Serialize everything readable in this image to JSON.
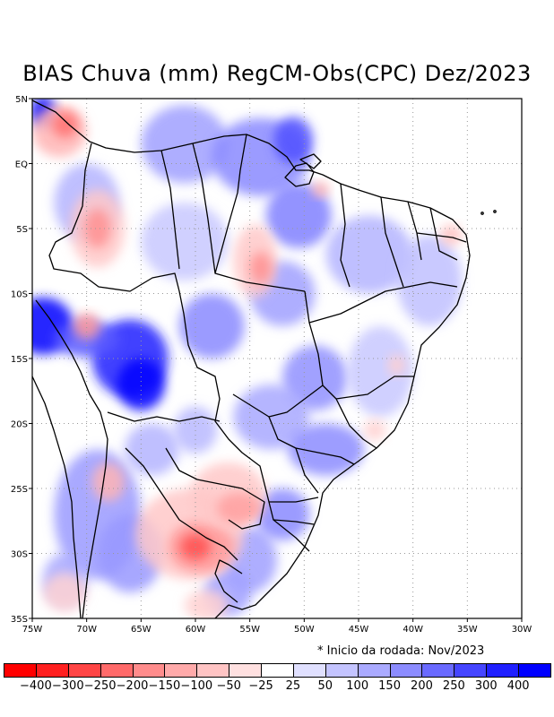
{
  "title": "BIAS Chuva (mm) RegCM-Obs(CPC) Dez/2023",
  "note": "* Inicio da rodada: Nov/2023",
  "map": {
    "lon_range": [
      -75,
      -30
    ],
    "lat_range": [
      -35,
      5
    ],
    "x_ticks": [
      "75W",
      "70W",
      "65W",
      "60W",
      "55W",
      "50W",
      "45W",
      "40W",
      "35W",
      "30W"
    ],
    "y_ticks": [
      "5N",
      "EQ",
      "5S",
      "10S",
      "15S",
      "20S",
      "25S",
      "30S",
      "35S"
    ],
    "blobs": [
      {
        "lon": -74.0,
        "lat": -12.5,
        "rx": 2.8,
        "ry": 2.2,
        "color": "#0000ff"
      },
      {
        "lon": -66.0,
        "lat": -15.0,
        "rx": 3.5,
        "ry": 3.0,
        "color": "#1e1eff"
      },
      {
        "lon": -65.0,
        "lat": -17.0,
        "rx": 2.2,
        "ry": 2.0,
        "color": "#0000ff"
      },
      {
        "lon": -70.0,
        "lat": -13.5,
        "rx": 3.0,
        "ry": 1.4,
        "color": "#5a5aff"
      },
      {
        "lon": -74.0,
        "lat": 4.0,
        "rx": 1.2,
        "ry": 1.2,
        "color": "#0000ff"
      },
      {
        "lon": -61.0,
        "lat": 1.5,
        "rx": 4.0,
        "ry": 3.0,
        "color": "#a0a0ff"
      },
      {
        "lon": -54.0,
        "lat": 0.5,
        "rx": 4.5,
        "ry": 3.0,
        "color": "#8a8aff"
      },
      {
        "lon": -51.0,
        "lat": 1.8,
        "rx": 1.8,
        "ry": 1.8,
        "color": "#5050ff"
      },
      {
        "lon": -50.5,
        "lat": -4.0,
        "rx": 3.0,
        "ry": 2.5,
        "color": "#8080ff"
      },
      {
        "lon": -58.5,
        "lat": -12.5,
        "rx": 3.0,
        "ry": 2.5,
        "color": "#8a8aff"
      },
      {
        "lon": -52.0,
        "lat": -10.0,
        "rx": 3.0,
        "ry": 2.5,
        "color": "#a0a0ff"
      },
      {
        "lon": -49.0,
        "lat": -16.5,
        "rx": 3.0,
        "ry": 2.5,
        "color": "#9090ff"
      },
      {
        "lon": -53.0,
        "lat": -19.5,
        "rx": 3.5,
        "ry": 2.5,
        "color": "#a8a8ff"
      },
      {
        "lon": -48.0,
        "lat": -22.0,
        "rx": 3.5,
        "ry": 2.0,
        "color": "#8c8cff"
      },
      {
        "lon": -44.0,
        "lat": -7.0,
        "rx": 4.0,
        "ry": 3.0,
        "color": "#b4b4ff"
      },
      {
        "lon": -38.5,
        "lat": -9.0,
        "rx": 3.0,
        "ry": 3.5,
        "color": "#c0c0ff"
      },
      {
        "lon": -43.0,
        "lat": -16.0,
        "rx": 3.0,
        "ry": 3.5,
        "color": "#c8c8ff"
      },
      {
        "lon": -70.0,
        "lat": -3.0,
        "rx": 3.0,
        "ry": 3.0,
        "color": "#b4b4ff"
      },
      {
        "lon": -61.0,
        "lat": -6.0,
        "rx": 4.0,
        "ry": 3.0,
        "color": "#c8c8ff"
      },
      {
        "lon": -69.0,
        "lat": -27.0,
        "rx": 4.0,
        "ry": 5.0,
        "color": "#9a9aff"
      },
      {
        "lon": -72.0,
        "lat": -32.0,
        "rx": 2.0,
        "ry": 2.0,
        "color": "#a8a8ff"
      },
      {
        "lon": -55.0,
        "lat": -30.5,
        "rx": 2.5,
        "ry": 2.5,
        "color": "#a0a0ff"
      },
      {
        "lon": -52.0,
        "lat": -27.0,
        "rx": 2.5,
        "ry": 2.0,
        "color": "#8a8aff"
      },
      {
        "lon": -57.0,
        "lat": -33.0,
        "rx": 2.2,
        "ry": 1.8,
        "color": "#a0a0ff"
      },
      {
        "lon": -66.0,
        "lat": -30.0,
        "rx": 3.0,
        "ry": 3.0,
        "color": "#9898ff"
      },
      {
        "lon": -64.0,
        "lat": -22.0,
        "rx": 2.5,
        "ry": 2.0,
        "color": "#b4b4ff"
      },
      {
        "lon": -60.0,
        "lat": -20.5,
        "rx": 2.0,
        "ry": 1.8,
        "color": "#b8b8ff"
      },
      {
        "lon": -60.5,
        "lat": -28.5,
        "rx": 5.0,
        "ry": 3.5,
        "color": "#ffc8c8"
      },
      {
        "lon": -59.5,
        "lat": -29.5,
        "rx": 3.0,
        "ry": 2.0,
        "color": "#ff9a9a"
      },
      {
        "lon": -60.0,
        "lat": -29.5,
        "rx": 1.4,
        "ry": 1.0,
        "color": "#ff5050"
      },
      {
        "lon": -57.0,
        "lat": -25.5,
        "rx": 3.5,
        "ry": 2.5,
        "color": "#ffc8c8"
      },
      {
        "lon": -56.0,
        "lat": -26.5,
        "rx": 2.0,
        "ry": 1.2,
        "color": "#ffa0a0"
      },
      {
        "lon": -69.0,
        "lat": -5.0,
        "rx": 2.5,
        "ry": 3.0,
        "color": "#ffc8c8"
      },
      {
        "lon": -69.0,
        "lat": -5.0,
        "rx": 1.2,
        "ry": 1.5,
        "color": "#ff9090"
      },
      {
        "lon": -72.5,
        "lat": 2.5,
        "rx": 2.5,
        "ry": 2.0,
        "color": "#ffb4b4"
      },
      {
        "lon": -72.0,
        "lat": 3.0,
        "rx": 1.2,
        "ry": 1.0,
        "color": "#ff7070"
      },
      {
        "lon": -54.5,
        "lat": -7.5,
        "rx": 2.0,
        "ry": 2.8,
        "color": "#ffc8c8"
      },
      {
        "lon": -54.0,
        "lat": -8.0,
        "rx": 1.0,
        "ry": 1.2,
        "color": "#ff9090"
      },
      {
        "lon": -70.0,
        "lat": -12.5,
        "rx": 1.2,
        "ry": 1.0,
        "color": "#ff9a9a"
      },
      {
        "lon": -68.0,
        "lat": -24.5,
        "rx": 1.5,
        "ry": 1.5,
        "color": "#ffb4b4"
      },
      {
        "lon": -72.0,
        "lat": -33.0,
        "rx": 2.0,
        "ry": 1.5,
        "color": "#ffd2d2"
      },
      {
        "lon": -59.0,
        "lat": -34.0,
        "rx": 2.0,
        "ry": 1.2,
        "color": "#ffd0d0"
      },
      {
        "lon": -36.5,
        "lat": -5.5,
        "rx": 1.0,
        "ry": 0.8,
        "color": "#ffc0c0"
      },
      {
        "lon": -48.5,
        "lat": -2.0,
        "rx": 0.8,
        "ry": 0.6,
        "color": "#ffb0b0"
      },
      {
        "lon": -43.5,
        "lat": -20.5,
        "rx": 1.0,
        "ry": 0.8,
        "color": "#ffd0d0"
      },
      {
        "lon": -41.5,
        "lat": -15.5,
        "rx": 0.8,
        "ry": 0.8,
        "color": "#ffd0d0"
      }
    ]
  },
  "legend": {
    "colors": [
      "#ff0000",
      "#ff2020",
      "#ff4545",
      "#ff6a6a",
      "#ff8c8c",
      "#ffaaaa",
      "#ffc4c4",
      "#ffe0e0",
      "#ffffff",
      "#e0e0ff",
      "#c4c4ff",
      "#aaaaff",
      "#8c8cff",
      "#6a6aff",
      "#4545ff",
      "#2020ff",
      "#0000ff"
    ],
    "labels": [
      "−400",
      "−300",
      "−250",
      "−200",
      "−150",
      "−100",
      "−50",
      "−25",
      "25",
      "50",
      "100",
      "150",
      "200",
      "250",
      "300",
      "400"
    ]
  }
}
